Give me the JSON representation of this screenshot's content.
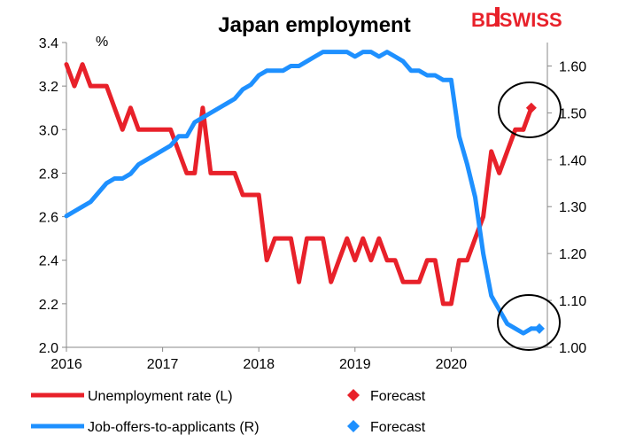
{
  "brand": {
    "logo_text": "BDSWISS",
    "color": "#e8212a"
  },
  "chart_data": {
    "type": "line",
    "title": "Japan employment",
    "left_axis": {
      "unit_label": "%",
      "ylim": [
        2.0,
        3.4
      ],
      "ticks": [
        "2.0",
        "2.2",
        "2.4",
        "2.6",
        "2.8",
        "3.0",
        "3.2",
        "3.4"
      ]
    },
    "right_axis": {
      "ylim": [
        1.0,
        1.65
      ],
      "ticks": [
        "1.00",
        "1.10",
        "1.20",
        "1.30",
        "1.40",
        "1.50",
        "1.60"
      ]
    },
    "x_axis": {
      "xlim": [
        2016.0,
        2021.0
      ],
      "ticks": [
        "2016",
        "2017",
        "2018",
        "2019",
        "2020"
      ]
    },
    "grid": false,
    "legend_placement": "bottom",
    "series": [
      {
        "name": "Unemployment rate (L)",
        "axis": "left",
        "color": "#e8212a",
        "x": [
          2016.0,
          2016.083,
          2016.167,
          2016.25,
          2016.333,
          2016.417,
          2016.5,
          2016.583,
          2016.667,
          2016.75,
          2016.833,
          2016.917,
          2017.0,
          2017.083,
          2017.167,
          2017.25,
          2017.333,
          2017.417,
          2017.5,
          2017.583,
          2017.667,
          2017.75,
          2017.833,
          2017.917,
          2018.0,
          2018.083,
          2018.167,
          2018.25,
          2018.333,
          2018.417,
          2018.5,
          2018.583,
          2018.667,
          2018.75,
          2018.833,
          2018.917,
          2019.0,
          2019.083,
          2019.167,
          2019.25,
          2019.333,
          2019.417,
          2019.5,
          2019.583,
          2019.667,
          2019.75,
          2019.833,
          2019.917,
          2020.0,
          2020.083,
          2020.167,
          2020.25,
          2020.333,
          2020.417,
          2020.5,
          2020.583,
          2020.667,
          2020.75
        ],
        "values": [
          3.3,
          3.2,
          3.3,
          3.2,
          3.2,
          3.2,
          3.1,
          3.0,
          3.1,
          3.0,
          3.0,
          3.0,
          3.0,
          3.0,
          2.9,
          2.8,
          2.8,
          3.1,
          2.8,
          2.8,
          2.8,
          2.8,
          2.7,
          2.7,
          2.7,
          2.4,
          2.5,
          2.5,
          2.5,
          2.3,
          2.5,
          2.5,
          2.5,
          2.3,
          2.4,
          2.5,
          2.4,
          2.5,
          2.4,
          2.5,
          2.4,
          2.4,
          2.3,
          2.3,
          2.3,
          2.4,
          2.4,
          2.2,
          2.2,
          2.4,
          2.4,
          2.5,
          2.6,
          2.9,
          2.8,
          2.9,
          3.0,
          3.0
        ]
      },
      {
        "name": "Job-offers-to-applicants (R)",
        "axis": "right",
        "color": "#1e90ff",
        "x": [
          2016.0,
          2016.083,
          2016.167,
          2016.25,
          2016.333,
          2016.417,
          2016.5,
          2016.583,
          2016.667,
          2016.75,
          2016.833,
          2016.917,
          2017.0,
          2017.083,
          2017.167,
          2017.25,
          2017.333,
          2017.417,
          2017.5,
          2017.583,
          2017.667,
          2017.75,
          2017.833,
          2017.917,
          2018.0,
          2018.083,
          2018.167,
          2018.25,
          2018.333,
          2018.417,
          2018.5,
          2018.583,
          2018.667,
          2018.75,
          2018.833,
          2018.917,
          2019.0,
          2019.083,
          2019.167,
          2019.25,
          2019.333,
          2019.417,
          2019.5,
          2019.583,
          2019.667,
          2019.75,
          2019.833,
          2019.917,
          2020.0,
          2020.083,
          2020.167,
          2020.25,
          2020.333,
          2020.417,
          2020.5,
          2020.583,
          2020.667,
          2020.75,
          2020.833
        ],
        "values": [
          1.28,
          1.29,
          1.3,
          1.31,
          1.33,
          1.35,
          1.36,
          1.36,
          1.37,
          1.39,
          1.4,
          1.41,
          1.42,
          1.43,
          1.45,
          1.45,
          1.48,
          1.49,
          1.5,
          1.51,
          1.52,
          1.53,
          1.55,
          1.56,
          1.58,
          1.59,
          1.59,
          1.59,
          1.6,
          1.6,
          1.61,
          1.62,
          1.63,
          1.63,
          1.63,
          1.63,
          1.62,
          1.63,
          1.63,
          1.62,
          1.63,
          1.62,
          1.61,
          1.59,
          1.59,
          1.58,
          1.58,
          1.57,
          1.57,
          1.45,
          1.39,
          1.32,
          1.2,
          1.11,
          1.08,
          1.05,
          1.04,
          1.03,
          1.04
        ]
      }
    ],
    "forecasts": [
      {
        "name": "Forecast",
        "axis": "left",
        "color": "#e8212a",
        "x": [
          2020.833
        ],
        "values": [
          3.1
        ]
      },
      {
        "name": "Forecast",
        "axis": "right",
        "color": "#1e90ff",
        "x": [
          2020.917
        ],
        "values": [
          1.04
        ]
      }
    ]
  }
}
